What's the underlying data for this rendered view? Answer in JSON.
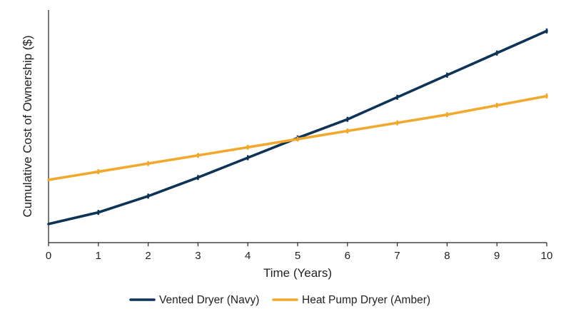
{
  "chart_data": {
    "type": "line",
    "title": "",
    "xlabel": "Time (Years)",
    "ylabel": "Cumulative Cost of Ownership ($)",
    "x": [
      0,
      1,
      2,
      3,
      4,
      5,
      6,
      7,
      8,
      9,
      10
    ],
    "xlim": [
      0,
      10
    ],
    "ylim": [
      0,
      100
    ],
    "y_ticks_shown": false,
    "grid": false,
    "legend_position": "bottom",
    "series": [
      {
        "name": "Vented Dryer (Navy)",
        "color": "#0d3357",
        "values": [
          8,
          13,
          20,
          28,
          36.5,
          45,
          53,
          62.5,
          72,
          81.5,
          91
        ]
      },
      {
        "name": "Heat Pump Dryer (Amber)",
        "color": "#f0a92c",
        "values": [
          27,
          30.5,
          34,
          37.5,
          41,
          44.5,
          48,
          51.5,
          55,
          59,
          63
        ]
      }
    ]
  }
}
